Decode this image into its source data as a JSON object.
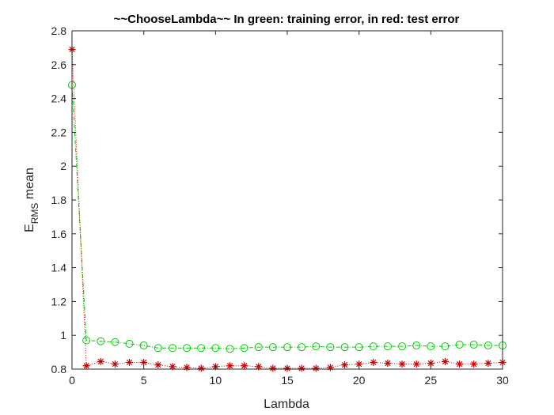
{
  "chart_data": {
    "type": "line",
    "title": "~~ChooseLambda~~ In green: training error, in red: test error",
    "xlabel": "Lambda",
    "ylabel": {
      "main": "E",
      "subscript": "RMS",
      "suffix": " mean"
    },
    "xlim": [
      0,
      30
    ],
    "ylim": [
      0.8,
      2.8
    ],
    "xticks": [
      0,
      5,
      10,
      15,
      20,
      25,
      30
    ],
    "yticks": [
      0.8,
      1,
      1.2,
      1.4,
      1.6,
      1.8,
      2,
      2.2,
      2.4,
      2.6,
      2.8
    ],
    "xtick_labels": [
      "0",
      "5",
      "10",
      "15",
      "20",
      "25",
      "30"
    ],
    "ytick_labels": [
      "0.8",
      "1",
      "1.2",
      "1.4",
      "1.6",
      "1.8",
      "2",
      "2.2",
      "2.4",
      "2.6",
      "2.8"
    ],
    "grid": false,
    "box": true,
    "x": [
      0,
      1,
      2,
      3,
      4,
      5,
      6,
      7,
      8,
      9,
      10,
      11,
      12,
      13,
      14,
      15,
      16,
      17,
      18,
      19,
      20,
      21,
      22,
      23,
      24,
      25,
      26,
      27,
      28,
      29,
      30
    ],
    "series": [
      {
        "color": "#00cc00",
        "marker": "circle",
        "line_style": "dash-dot",
        "values": [
          2.48,
          0.97,
          0.965,
          0.96,
          0.95,
          0.94,
          0.925,
          0.925,
          0.925,
          0.925,
          0.925,
          0.92,
          0.925,
          0.93,
          0.93,
          0.93,
          0.93,
          0.935,
          0.93,
          0.93,
          0.93,
          0.935,
          0.935,
          0.935,
          0.94,
          0.935,
          0.935,
          0.945,
          0.945,
          0.94,
          0.94
        ]
      },
      {
        "color": "#cc0000",
        "marker": "asterisk",
        "line_style": "dotted",
        "values": [
          2.69,
          0.82,
          0.845,
          0.83,
          0.84,
          0.84,
          0.825,
          0.815,
          0.81,
          0.805,
          0.815,
          0.82,
          0.82,
          0.815,
          0.805,
          0.805,
          0.805,
          0.805,
          0.81,
          0.825,
          0.83,
          0.84,
          0.835,
          0.83,
          0.83,
          0.835,
          0.845,
          0.83,
          0.83,
          0.835,
          0.84
        ]
      }
    ]
  }
}
